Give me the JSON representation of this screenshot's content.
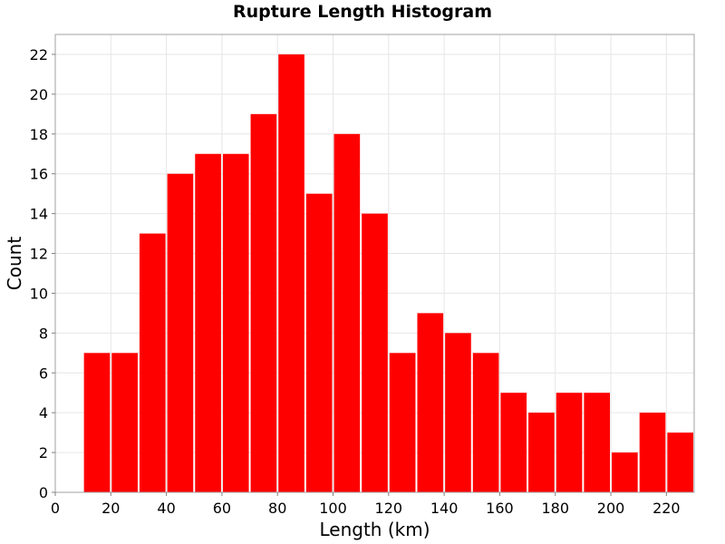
{
  "chart_data": {
    "type": "bar",
    "title": "Rupture Length Histogram",
    "xlabel": "Length (km)",
    "ylabel": "Count",
    "bin_width": 10,
    "bins": [
      {
        "start": 10,
        "end": 20,
        "count": 7
      },
      {
        "start": 20,
        "end": 30,
        "count": 7
      },
      {
        "start": 30,
        "end": 40,
        "count": 13
      },
      {
        "start": 40,
        "end": 50,
        "count": 16
      },
      {
        "start": 50,
        "end": 60,
        "count": 17
      },
      {
        "start": 60,
        "end": 70,
        "count": 17
      },
      {
        "start": 70,
        "end": 80,
        "count": 19
      },
      {
        "start": 80,
        "end": 90,
        "count": 22
      },
      {
        "start": 90,
        "end": 100,
        "count": 15
      },
      {
        "start": 100,
        "end": 110,
        "count": 18
      },
      {
        "start": 110,
        "end": 120,
        "count": 14
      },
      {
        "start": 120,
        "end": 130,
        "count": 7
      },
      {
        "start": 130,
        "end": 140,
        "count": 9
      },
      {
        "start": 140,
        "end": 150,
        "count": 8
      },
      {
        "start": 150,
        "end": 160,
        "count": 7
      },
      {
        "start": 160,
        "end": 170,
        "count": 5
      },
      {
        "start": 170,
        "end": 180,
        "count": 4
      },
      {
        "start": 180,
        "end": 190,
        "count": 5
      },
      {
        "start": 190,
        "end": 200,
        "count": 5
      },
      {
        "start": 200,
        "end": 210,
        "count": 2
      },
      {
        "start": 210,
        "end": 220,
        "count": 4
      },
      {
        "start": 220,
        "end": 230,
        "count": 3
      }
    ],
    "xlim": [
      0,
      230
    ],
    "ylim": [
      0,
      23
    ],
    "xticks": [
      0,
      20,
      40,
      60,
      80,
      100,
      120,
      140,
      160,
      180,
      200,
      220
    ],
    "yticks": [
      0,
      2,
      4,
      6,
      8,
      10,
      12,
      14,
      16,
      18,
      20,
      22
    ],
    "grid": true,
    "bar_color": "#ff0000",
    "grid_color": "#e6e6e6",
    "plot_border_color": "#a0a0a0"
  }
}
